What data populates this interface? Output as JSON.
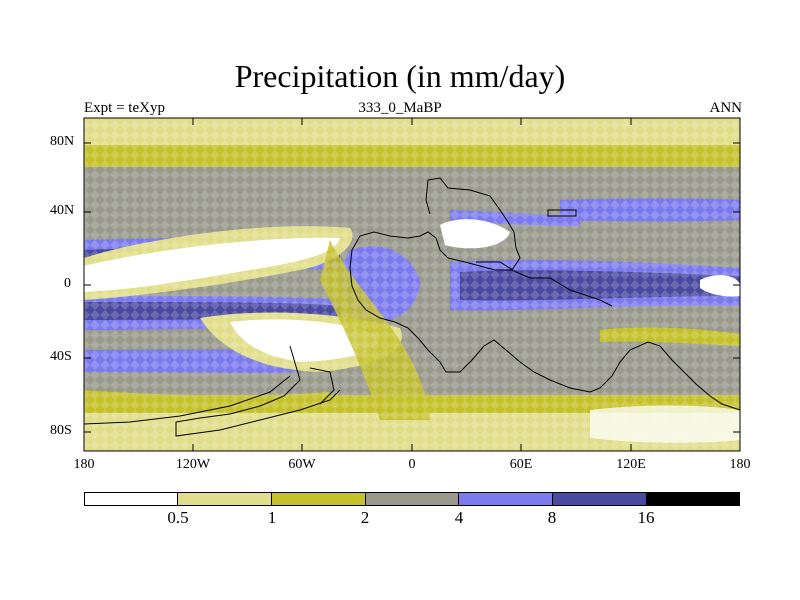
{
  "header": {
    "title": "Precipitation (in mm/day)",
    "left": "Expt = teXyp",
    "center": "333_0_MaBP",
    "right": "ANN"
  },
  "axes": {
    "lat_ticks": [
      "80N",
      "40N",
      "0",
      "40S",
      "80S"
    ],
    "lon_ticks": [
      "180",
      "120W",
      "60W",
      "0",
      "60E",
      "120E",
      "180"
    ]
  },
  "colorbar": {
    "levels": [
      "0.5",
      "1",
      "2",
      "4",
      "8",
      "16"
    ],
    "colors": [
      "#ffffff",
      "#e0de8a",
      "#c4c12a",
      "#999a8c",
      "#7c7bee",
      "#4a49a0",
      "#000000"
    ]
  },
  "map_style": {
    "background": "#999a8c",
    "coastline_color": "#000000"
  }
}
